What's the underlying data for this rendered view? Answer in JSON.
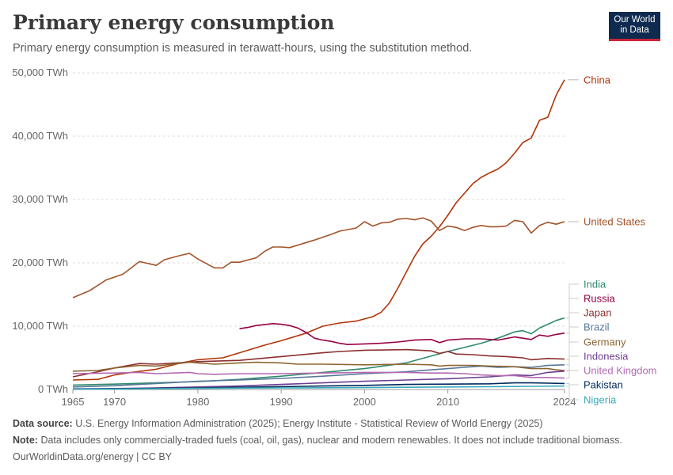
{
  "header": {
    "title": "Primary energy consumption",
    "subtitle": "Primary energy consumption is measured in terawatt-hours, using the substitution method.",
    "logo_line1": "Our World",
    "logo_line2": "in Data"
  },
  "footer": {
    "source_label": "Data source:",
    "source_text": "U.S. Energy Information Administration (2025); Energy Institute - Statistical Review of World Energy (2025)",
    "note_label": "Note:",
    "note_text": "Data includes only commercially-traded fuels (coal, oil, gas), nuclear and modern renewables. It does not include traditional biomass.",
    "credit": "OurWorldinData.org/energy | CC BY"
  },
  "chart_data": {
    "type": "line",
    "title": "Primary energy consumption",
    "ylabel": "",
    "xlabel": "",
    "xlim": [
      1965,
      2024
    ],
    "ylim": [
      0,
      50000
    ],
    "x_ticks": [
      "1965",
      "1970",
      "1980",
      "1990",
      "2000",
      "2010",
      "2024"
    ],
    "y_ticks": [
      "0 TWh",
      "10,000 TWh",
      "20,000 TWh",
      "30,000 TWh",
      "40,000 TWh",
      "50,000 TWh"
    ],
    "grid": "horizontal dashed",
    "legend": "line-end labels on right",
    "series": [
      {
        "name": "China",
        "color": "#b13507",
        "points": [
          [
            1965,
            1500
          ],
          [
            1968,
            1600
          ],
          [
            1970,
            2300
          ],
          [
            1972,
            2700
          ],
          [
            1975,
            3200
          ],
          [
            1978,
            4200
          ],
          [
            1980,
            4700
          ],
          [
            1983,
            5000
          ],
          [
            1985,
            5800
          ],
          [
            1988,
            7000
          ],
          [
            1990,
            7700
          ],
          [
            1993,
            8900
          ],
          [
            1995,
            10000
          ],
          [
            1997,
            10500
          ],
          [
            1999,
            10800
          ],
          [
            2001,
            11500
          ],
          [
            2002,
            12200
          ],
          [
            2003,
            13700
          ],
          [
            2004,
            16000
          ],
          [
            2005,
            18500
          ],
          [
            2006,
            21000
          ],
          [
            2007,
            23000
          ],
          [
            2008,
            24200
          ],
          [
            2009,
            25700
          ],
          [
            2010,
            27500
          ],
          [
            2011,
            29500
          ],
          [
            2012,
            31000
          ],
          [
            2013,
            32500
          ],
          [
            2014,
            33500
          ],
          [
            2015,
            34200
          ],
          [
            2016,
            34800
          ],
          [
            2017,
            35800
          ],
          [
            2018,
            37300
          ],
          [
            2019,
            39000
          ],
          [
            2020,
            39700
          ],
          [
            2021,
            42500
          ],
          [
            2022,
            43000
          ],
          [
            2023,
            46500
          ],
          [
            2024,
            48900
          ]
        ]
      },
      {
        "name": "United States",
        "color": "#a2532a",
        "points": [
          [
            1965,
            14500
          ],
          [
            1967,
            15600
          ],
          [
            1969,
            17300
          ],
          [
            1971,
            18200
          ],
          [
            1973,
            20200
          ],
          [
            1975,
            19600
          ],
          [
            1976,
            20500
          ],
          [
            1978,
            21200
          ],
          [
            1979,
            21500
          ],
          [
            1980,
            20600
          ],
          [
            1981,
            19900
          ],
          [
            1982,
            19200
          ],
          [
            1983,
            19200
          ],
          [
            1984,
            20100
          ],
          [
            1985,
            20100
          ],
          [
            1987,
            20800
          ],
          [
            1988,
            21800
          ],
          [
            1989,
            22500
          ],
          [
            1990,
            22500
          ],
          [
            1991,
            22400
          ],
          [
            1992,
            22800
          ],
          [
            1994,
            23600
          ],
          [
            1996,
            24500
          ],
          [
            1997,
            25000
          ],
          [
            1999,
            25500
          ],
          [
            2000,
            26500
          ],
          [
            2001,
            25800
          ],
          [
            2002,
            26300
          ],
          [
            2003,
            26400
          ],
          [
            2004,
            26900
          ],
          [
            2005,
            27000
          ],
          [
            2006,
            26800
          ],
          [
            2007,
            27100
          ],
          [
            2008,
            26600
          ],
          [
            2009,
            25100
          ],
          [
            2010,
            25800
          ],
          [
            2011,
            25600
          ],
          [
            2012,
            25100
          ],
          [
            2013,
            25600
          ],
          [
            2014,
            25900
          ],
          [
            2015,
            25700
          ],
          [
            2016,
            25700
          ],
          [
            2017,
            25800
          ],
          [
            2018,
            26700
          ],
          [
            2019,
            26500
          ],
          [
            2020,
            24700
          ],
          [
            2021,
            25900
          ],
          [
            2022,
            26400
          ],
          [
            2023,
            26100
          ],
          [
            2024,
            26500
          ]
        ]
      },
      {
        "name": "India",
        "color": "#2f8a6b",
        "points": [
          [
            1965,
            700
          ],
          [
            1970,
            850
          ],
          [
            1975,
            1050
          ],
          [
            1980,
            1250
          ],
          [
            1985,
            1600
          ],
          [
            1990,
            2100
          ],
          [
            1995,
            2700
          ],
          [
            2000,
            3300
          ],
          [
            2005,
            4200
          ],
          [
            2010,
            6000
          ],
          [
            2014,
            7300
          ],
          [
            2015,
            7700
          ],
          [
            2016,
            8100
          ],
          [
            2017,
            8600
          ],
          [
            2018,
            9100
          ],
          [
            2019,
            9300
          ],
          [
            2020,
            8800
          ],
          [
            2021,
            9700
          ],
          [
            2022,
            10300
          ],
          [
            2023,
            10900
          ],
          [
            2024,
            11300
          ]
        ]
      },
      {
        "name": "Russia",
        "color": "#970046",
        "points": [
          [
            1985,
            9600
          ],
          [
            1986,
            9800
          ],
          [
            1987,
            10100
          ],
          [
            1989,
            10400
          ],
          [
            1990,
            10300
          ],
          [
            1991,
            10100
          ],
          [
            1992,
            9700
          ],
          [
            1993,
            9000
          ],
          [
            1994,
            8100
          ],
          [
            1995,
            7800
          ],
          [
            1996,
            7600
          ],
          [
            1997,
            7300
          ],
          [
            1998,
            7100
          ],
          [
            2000,
            7200
          ],
          [
            2002,
            7300
          ],
          [
            2004,
            7500
          ],
          [
            2006,
            7800
          ],
          [
            2008,
            7900
          ],
          [
            2009,
            7400
          ],
          [
            2010,
            7800
          ],
          [
            2012,
            8000
          ],
          [
            2014,
            8000
          ],
          [
            2016,
            7800
          ],
          [
            2018,
            8300
          ],
          [
            2020,
            7900
          ],
          [
            2021,
            8600
          ],
          [
            2022,
            8400
          ],
          [
            2023,
            8700
          ],
          [
            2024,
            8900
          ]
        ]
      },
      {
        "name": "Japan",
        "color": "#8c2f2f",
        "points": [
          [
            1965,
            2000
          ],
          [
            1968,
            2800
          ],
          [
            1970,
            3400
          ],
          [
            1973,
            4100
          ],
          [
            1975,
            4000
          ],
          [
            1980,
            4400
          ],
          [
            1985,
            4600
          ],
          [
            1990,
            5200
          ],
          [
            1995,
            5800
          ],
          [
            1997,
            6000
          ],
          [
            2000,
            6200
          ],
          [
            2005,
            6300
          ],
          [
            2008,
            6100
          ],
          [
            2009,
            5700
          ],
          [
            2010,
            6000
          ],
          [
            2011,
            5600
          ],
          [
            2013,
            5500
          ],
          [
            2015,
            5300
          ],
          [
            2017,
            5200
          ],
          [
            2019,
            5000
          ],
          [
            2020,
            4700
          ],
          [
            2022,
            4900
          ],
          [
            2024,
            4800
          ]
        ]
      },
      {
        "name": "Brazil",
        "color": "#577799",
        "points": [
          [
            1965,
            400
          ],
          [
            1970,
            600
          ],
          [
            1975,
            950
          ],
          [
            1980,
            1300
          ],
          [
            1985,
            1500
          ],
          [
            1990,
            1750
          ],
          [
            1995,
            2100
          ],
          [
            2000,
            2500
          ],
          [
            2005,
            2800
          ],
          [
            2010,
            3300
          ],
          [
            2012,
            3500
          ],
          [
            2014,
            3700
          ],
          [
            2016,
            3500
          ],
          [
            2018,
            3600
          ],
          [
            2020,
            3500
          ],
          [
            2022,
            3800
          ],
          [
            2024,
            3900
          ]
        ]
      },
      {
        "name": "Germany",
        "color": "#8d6532",
        "points": [
          [
            1965,
            2900
          ],
          [
            1968,
            3000
          ],
          [
            1970,
            3400
          ],
          [
            1973,
            3800
          ],
          [
            1975,
            3700
          ],
          [
            1979,
            4300
          ],
          [
            1980,
            4200
          ],
          [
            1982,
            4000
          ],
          [
            1985,
            4200
          ],
          [
            1987,
            4300
          ],
          [
            1990,
            4200
          ],
          [
            1992,
            4000
          ],
          [
            1995,
            4000
          ],
          [
            2000,
            3900
          ],
          [
            2005,
            4000
          ],
          [
            2008,
            3900
          ],
          [
            2009,
            3700
          ],
          [
            2010,
            3800
          ],
          [
            2013,
            3800
          ],
          [
            2015,
            3700
          ],
          [
            2018,
            3600
          ],
          [
            2020,
            3300
          ],
          [
            2022,
            3300
          ],
          [
            2023,
            3100
          ],
          [
            2024,
            3000
          ]
        ]
      },
      {
        "name": "Indonesia",
        "color": "#6d3e91",
        "points": [
          [
            1965,
            100
          ],
          [
            1970,
            150
          ],
          [
            1975,
            250
          ],
          [
            1980,
            400
          ],
          [
            1985,
            550
          ],
          [
            1990,
            800
          ],
          [
            1995,
            1050
          ],
          [
            2000,
            1300
          ],
          [
            2005,
            1500
          ],
          [
            2010,
            1700
          ],
          [
            2015,
            2000
          ],
          [
            2018,
            2300
          ],
          [
            2020,
            2200
          ],
          [
            2022,
            2700
          ],
          [
            2024,
            2900
          ]
        ]
      },
      {
        "name": "United Kingdom",
        "color": "#b36ab1",
        "points": [
          [
            1965,
            2500
          ],
          [
            1970,
            2600
          ],
          [
            1973,
            2700
          ],
          [
            1975,
            2500
          ],
          [
            1979,
            2700
          ],
          [
            1980,
            2500
          ],
          [
            1982,
            2400
          ],
          [
            1985,
            2500
          ],
          [
            1990,
            2500
          ],
          [
            1995,
            2600
          ],
          [
            2000,
            2700
          ],
          [
            2005,
            2700
          ],
          [
            2008,
            2600
          ],
          [
            2010,
            2600
          ],
          [
            2012,
            2500
          ],
          [
            2014,
            2300
          ],
          [
            2016,
            2200
          ],
          [
            2018,
            2200
          ],
          [
            2020,
            1900
          ],
          [
            2022,
            1900
          ],
          [
            2024,
            1800
          ]
        ]
      },
      {
        "name": "Pakistan",
        "color": "#00295b",
        "points": [
          [
            1965,
            80
          ],
          [
            1970,
            130
          ],
          [
            1975,
            180
          ],
          [
            1980,
            250
          ],
          [
            1985,
            350
          ],
          [
            1990,
            450
          ],
          [
            1995,
            550
          ],
          [
            2000,
            650
          ],
          [
            2005,
            800
          ],
          [
            2010,
            850
          ],
          [
            2015,
            900
          ],
          [
            2018,
            1050
          ],
          [
            2020,
            1050
          ],
          [
            2022,
            1000
          ],
          [
            2024,
            950
          ]
        ]
      },
      {
        "name": "Nigeria",
        "color": "#38aaba",
        "points": [
          [
            1965,
            50
          ],
          [
            1970,
            80
          ],
          [
            1975,
            120
          ],
          [
            1980,
            180
          ],
          [
            1985,
            220
          ],
          [
            1990,
            250
          ],
          [
            1995,
            280
          ],
          [
            2000,
            300
          ],
          [
            2005,
            350
          ],
          [
            2010,
            400
          ],
          [
            2015,
            450
          ],
          [
            2020,
            500
          ],
          [
            2024,
            550
          ]
        ]
      }
    ]
  }
}
